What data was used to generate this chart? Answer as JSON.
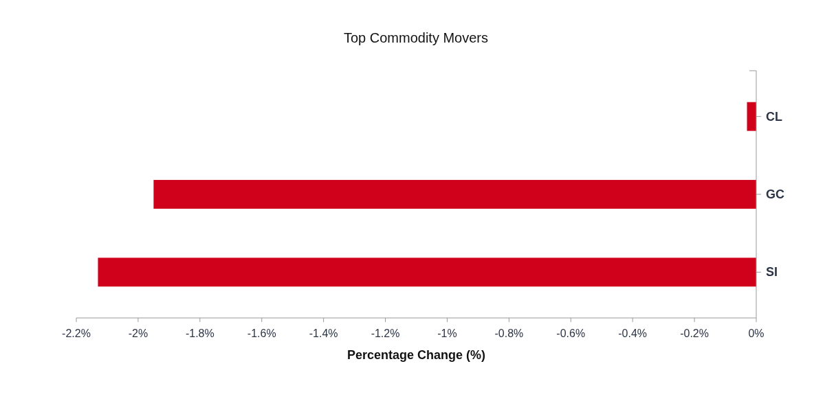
{
  "chart_data": {
    "type": "bar",
    "orientation": "horizontal",
    "title": "Top Commodity Movers",
    "xlabel": "Percentage Change (%)",
    "categories": [
      "CL",
      "GC",
      "SI"
    ],
    "values": [
      -0.03,
      -1.95,
      -2.13
    ],
    "color": "#d0021b",
    "xlim": [
      -2.2,
      0
    ],
    "xticks": [
      {
        "value": -2.2,
        "label": "-2.2%"
      },
      {
        "value": -2,
        "label": "-2%"
      },
      {
        "value": -1.8,
        "label": "-1.8%"
      },
      {
        "value": -1.6,
        "label": "-1.6%"
      },
      {
        "value": -1.4,
        "label": "-1.4%"
      },
      {
        "value": -1.2,
        "label": "-1.2%"
      },
      {
        "value": -1,
        "label": "-1%"
      },
      {
        "value": -0.8,
        "label": "-0.8%"
      },
      {
        "value": -0.6,
        "label": "-0.6%"
      },
      {
        "value": -0.4,
        "label": "-0.4%"
      },
      {
        "value": -0.2,
        "label": "-0.2%"
      },
      {
        "value": 0,
        "label": "0%"
      }
    ],
    "grid": false
  }
}
